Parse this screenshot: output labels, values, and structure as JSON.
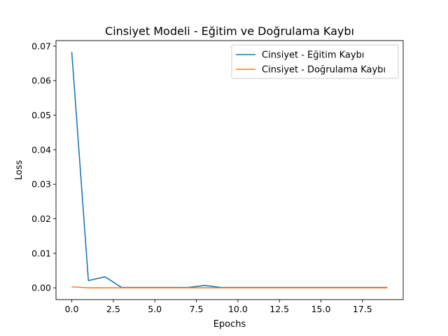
{
  "chart_data": {
    "type": "line",
    "title": "Cinsiyet Modeli - Eğitim ve Doğrulama Kaybı",
    "xlabel": "Epochs",
    "ylabel": "Loss",
    "xlim": [
      -0.95,
      19.95
    ],
    "ylim": [
      -0.0034,
      0.0716
    ],
    "x_ticks": [
      0,
      2.5,
      5,
      7.5,
      10,
      12.5,
      15,
      17.5
    ],
    "x_tick_labels": [
      "0.0",
      "2.5",
      "5.0",
      "7.5",
      "10.0",
      "12.5",
      "15.0",
      "17.5"
    ],
    "y_ticks": [
      0,
      0.01,
      0.02,
      0.03,
      0.04,
      0.05,
      0.06,
      0.07
    ],
    "y_tick_labels": [
      "0.00",
      "0.01",
      "0.02",
      "0.03",
      "0.04",
      "0.05",
      "0.06",
      "0.07"
    ],
    "grid": false,
    "legend_position": "top-right",
    "x": [
      0,
      1,
      2,
      3,
      4,
      5,
      6,
      7,
      8,
      9,
      10,
      11,
      12,
      13,
      14,
      15,
      16,
      17,
      18,
      19
    ],
    "series": [
      {
        "name": "Cinsiyet - Eğitim Kaybı",
        "color": "#1f77b4",
        "values": [
          0.0683,
          0.0021,
          0.0032,
          0.0001,
          0.0001,
          0.0001,
          0.0001,
          0.0001,
          0.0007,
          0.0001,
          0.0001,
          0.0001,
          0.0001,
          0.0001,
          0.0001,
          0.0001,
          0.0001,
          0.0001,
          0.0001,
          0.0001
        ]
      },
      {
        "name": "Cinsiyet - Doğrulama Kaybı",
        "color": "#ff7f0e",
        "values": [
          0.0003,
          0.0,
          0.0,
          0.0,
          0.0,
          0.0,
          0.0,
          0.0,
          0.0,
          0.0,
          0.0,
          0.0,
          0.0,
          0.0,
          0.0,
          0.0,
          0.0,
          0.0,
          0.0,
          0.0
        ]
      }
    ]
  }
}
